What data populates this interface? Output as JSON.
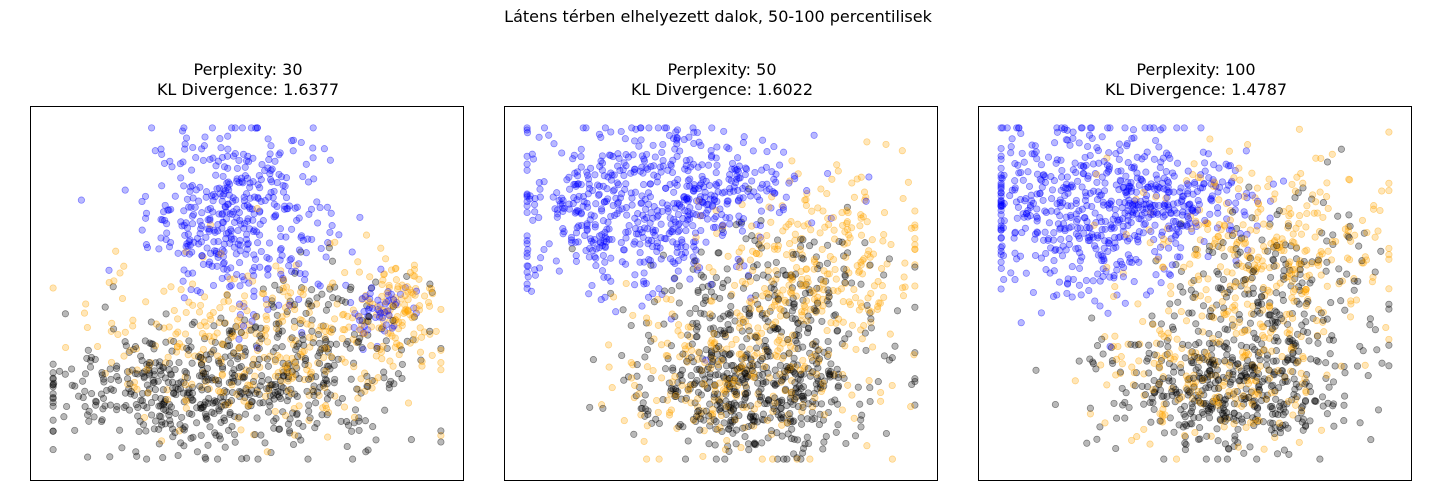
{
  "figure": {
    "suptitle": "Látens térben elhelyezett dalok, 50-100 percentilisek"
  },
  "colors": {
    "blue": "#0000ff",
    "orange": "#ffa500",
    "black": "#000000"
  },
  "chart_data": [
    {
      "type": "scatter",
      "title_line1": "Perplexity: 30",
      "title_line2": "KL Divergence: 1.6377",
      "xlabel": "",
      "ylabel": "",
      "grid": false,
      "xlim": [
        -1,
        1
      ],
      "ylim": [
        -1,
        1
      ],
      "clusters": [
        {
          "color": "blue",
          "cx": -0.05,
          "cy": 0.45,
          "sx": 0.22,
          "sy": 0.25,
          "n": 420
        },
        {
          "color": "blue",
          "cx": 0.65,
          "cy": -0.1,
          "sx": 0.07,
          "sy": 0.1,
          "n": 50
        },
        {
          "color": "orange",
          "cx": 0.05,
          "cy": -0.3,
          "sx": 0.4,
          "sy": 0.25,
          "n": 330
        },
        {
          "color": "orange",
          "cx": 0.75,
          "cy": -0.1,
          "sx": 0.1,
          "sy": 0.15,
          "n": 120
        },
        {
          "color": "black",
          "cx": -0.25,
          "cy": -0.55,
          "sx": 0.38,
          "sy": 0.18,
          "n": 470
        },
        {
          "color": "black",
          "cx": 0.4,
          "cy": -0.35,
          "sx": 0.25,
          "sy": 0.25,
          "n": 180
        }
      ]
    },
    {
      "type": "scatter",
      "title_line1": "Perplexity: 50",
      "title_line2": "KL Divergence: 1.6022",
      "xlabel": "",
      "ylabel": "",
      "grid": false,
      "xlim": [
        -1,
        1
      ],
      "ylim": [
        -1,
        1
      ],
      "clusters": [
        {
          "color": "blue",
          "cx": -0.45,
          "cy": 0.5,
          "sx": 0.3,
          "sy": 0.25,
          "n": 520
        },
        {
          "color": "blue",
          "cx": 0.05,
          "cy": 0.6,
          "sx": 0.18,
          "sy": 0.12,
          "n": 120
        },
        {
          "color": "orange",
          "cx": 0.5,
          "cy": 0.2,
          "sx": 0.25,
          "sy": 0.25,
          "n": 260
        },
        {
          "color": "orange",
          "cx": 0.1,
          "cy": -0.45,
          "sx": 0.3,
          "sy": 0.25,
          "n": 260
        },
        {
          "color": "black",
          "cx": 0.15,
          "cy": -0.55,
          "sx": 0.3,
          "sy": 0.2,
          "n": 480
        },
        {
          "color": "black",
          "cx": 0.25,
          "cy": 0.0,
          "sx": 0.3,
          "sy": 0.22,
          "n": 200
        }
      ]
    },
    {
      "type": "scatter",
      "title_line1": "Perplexity: 100",
      "title_line2": "KL Divergence: 1.4787",
      "xlabel": "",
      "ylabel": "",
      "grid": false,
      "xlim": [
        -1,
        1
      ],
      "ylim": [
        -1,
        1
      ],
      "clusters": [
        {
          "color": "blue",
          "cx": -0.5,
          "cy": 0.5,
          "sx": 0.3,
          "sy": 0.25,
          "n": 560
        },
        {
          "color": "blue",
          "cx": -0.05,
          "cy": 0.55,
          "sx": 0.2,
          "sy": 0.12,
          "n": 120
        },
        {
          "color": "orange",
          "cx": 0.35,
          "cy": 0.25,
          "sx": 0.3,
          "sy": 0.25,
          "n": 300
        },
        {
          "color": "orange",
          "cx": 0.1,
          "cy": -0.45,
          "sx": 0.3,
          "sy": 0.25,
          "n": 220
        },
        {
          "color": "black",
          "cx": 0.15,
          "cy": -0.55,
          "sx": 0.3,
          "sy": 0.2,
          "n": 460
        },
        {
          "color": "black",
          "cx": 0.4,
          "cy": 0.05,
          "sx": 0.25,
          "sy": 0.25,
          "n": 200
        }
      ]
    }
  ]
}
